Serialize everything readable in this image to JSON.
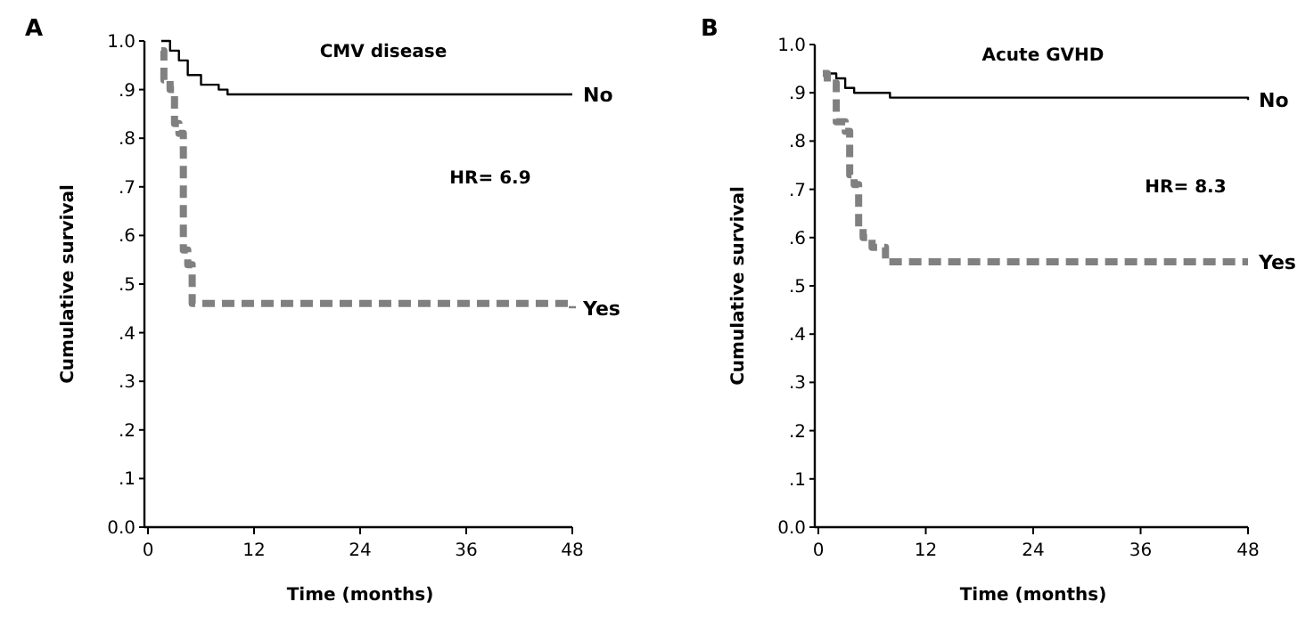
{
  "chart_data": [
    {
      "type": "step",
      "title": "CMV disease",
      "xlabel": "Time (months)",
      "ylabel": "Cumulative survival",
      "annotations": [
        "A",
        "HR= 6.9"
      ],
      "xlim": [
        0,
        48
      ],
      "xticks": [
        0,
        12,
        24,
        36,
        48
      ],
      "ylim": [
        0,
        1
      ],
      "yticks": [
        {
          "value": 0,
          "label": "0.0"
        },
        {
          "value": 0.1,
          "label": ".1"
        },
        {
          "value": 0.2,
          "label": ".2"
        },
        {
          "value": 0.3,
          "label": ".3"
        },
        {
          "value": 0.4,
          "label": ".4"
        },
        {
          "value": 0.5,
          "label": ".5"
        },
        {
          "value": 0.6,
          "label": ".6"
        },
        {
          "value": 0.7,
          "label": ".7"
        },
        {
          "value": 0.8,
          "label": ".8"
        },
        {
          "value": 0.9,
          "label": ".9"
        },
        {
          "value": 1,
          "label": "1.0"
        }
      ],
      "legend": false,
      "series": [
        {
          "name": "No",
          "color": "#000000",
          "line_style": "solid",
          "x": [
            1.5,
            2.5,
            3.5,
            4.5,
            6,
            8,
            9,
            48
          ],
          "values": [
            1,
            0.98,
            0.96,
            0.93,
            0.91,
            0.9,
            0.89,
            0.89
          ]
        },
        {
          "name": "Yes",
          "color": "#808080",
          "line_style": "dashed",
          "x": [
            1.5,
            1.8,
            2.5,
            3,
            3.5,
            4,
            4.5,
            5,
            48
          ],
          "values": [
            0.98,
            0.92,
            0.9,
            0.83,
            0.81,
            0.57,
            0.54,
            0.46,
            0.45
          ]
        }
      ]
    },
    {
      "type": "step",
      "title": "Acute GVHD",
      "xlabel": "Time (months)",
      "ylabel": "Cumulative survival",
      "annotations": [
        "B",
        "HR= 8.3"
      ],
      "xlim": [
        0,
        48
      ],
      "xticks": [
        0,
        12,
        24,
        36,
        48
      ],
      "ylim": [
        0,
        1
      ],
      "yticks": [
        {
          "value": 0,
          "label": "0.0"
        },
        {
          "value": 0.1,
          "label": ".1"
        },
        {
          "value": 0.2,
          "label": ".2"
        },
        {
          "value": 0.3,
          "label": ".3"
        },
        {
          "value": 0.4,
          "label": ".4"
        },
        {
          "value": 0.5,
          "label": ".5"
        },
        {
          "value": 0.6,
          "label": ".6"
        },
        {
          "value": 0.7,
          "label": ".7"
        },
        {
          "value": 0.8,
          "label": ".8"
        },
        {
          "value": 0.9,
          "label": ".9"
        },
        {
          "value": 1,
          "label": "1.0"
        }
      ],
      "legend": false,
      "series": [
        {
          "name": "No",
          "color": "#000000",
          "line_style": "solid",
          "x": [
            1,
            2,
            3,
            4,
            8,
            48
          ],
          "values": [
            0.94,
            0.93,
            0.91,
            0.9,
            0.89,
            0.885
          ]
        },
        {
          "name": "Yes",
          "color": "#808080",
          "line_style": "dashed",
          "x": [
            0.5,
            1,
            2,
            3,
            3.5,
            4,
            4.5,
            5,
            6,
            7.5,
            48
          ],
          "values": [
            0.94,
            0.92,
            0.84,
            0.82,
            0.73,
            0.71,
            0.62,
            0.6,
            0.58,
            0.55,
            0.55
          ]
        }
      ]
    }
  ]
}
